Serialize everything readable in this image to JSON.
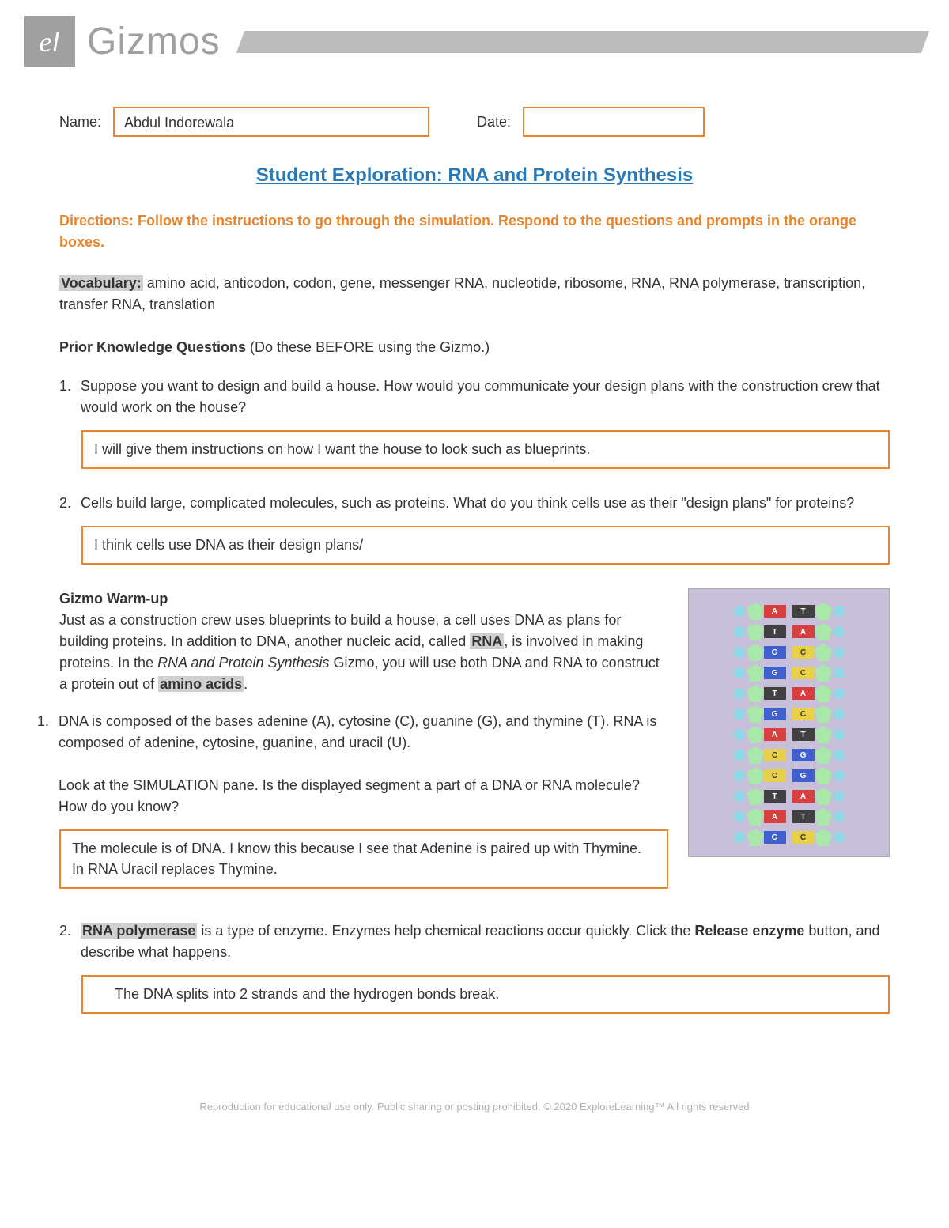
{
  "header": {
    "logo_text": "el",
    "brand": "Gizmos"
  },
  "fields": {
    "name_label": "Name:",
    "name_value": "Abdul Indorewala",
    "date_label": "Date:",
    "date_value": ""
  },
  "title": "Student Exploration: RNA and Protein Synthesis",
  "directions": "Directions: Follow the instructions to go through the simulation. Respond to the questions and prompts in the orange boxes.",
  "vocab": {
    "label": "Vocabulary:",
    "text": " amino acid, anticodon, codon, gene, messenger RNA, nucleotide, ribosome, RNA, RNA polymerase, transcription, transfer RNA, translation"
  },
  "prior": {
    "label": "Prior Knowledge Questions",
    "note": " (Do these BEFORE using the Gizmo.)"
  },
  "q1": {
    "num": "1.",
    "text": "Suppose you want to design and build a house. How would you communicate your design plans with the construction crew that would work on the house?",
    "answer": "I will give them instructions on how I want the house to look such as blueprints."
  },
  "q2": {
    "num": "2.",
    "text": "Cells build large, complicated molecules, such as proteins. What do you think cells use as their \"design plans\" for proteins?",
    "answer": "I think cells use DNA as their design plans/"
  },
  "warmup": {
    "heading": "Gizmo Warm-up",
    "intro_1": "Just as a construction crew uses blueprints to build a house, a cell uses DNA as plans for building proteins. In addition to DNA, another nucleic acid, called ",
    "rna": "RNA",
    "intro_2": ", is involved in making proteins. In the ",
    "italic": "RNA and Protein Synthesis",
    "intro_3": " Gizmo, you will use both DNA and RNA to construct a protein out of ",
    "amino": "amino acids",
    "intro_4": "."
  },
  "wq1": {
    "num": "1.",
    "text_a": "DNA is composed of the bases adenine (A), cytosine (C), guanine (G), and thymine (T). RNA is composed of adenine, cytosine, guanine, and uracil (U).",
    "text_b": "Look at the SIMULATION pane. Is the displayed segment a part of a DNA or RNA molecule? How do you know?",
    "answer": "The molecule is of DNA. I know this because I see that Adenine is paired up with Thymine. In RNA Uracil replaces Thymine."
  },
  "wq2": {
    "num": "2.",
    "rna_poly": "RNA polymerase",
    "text_a": " is a type of enzyme. Enzymes help chemical reactions occur quickly. Click the ",
    "release": "Release enzyme",
    "text_b": " button, and describe what happens.",
    "answer": "The DNA splits into 2 strands and the hydrogen bonds break."
  },
  "dna_pairs": [
    [
      "A",
      "T"
    ],
    [
      "T",
      "A"
    ],
    [
      "G",
      "C"
    ],
    [
      "G",
      "C"
    ],
    [
      "T",
      "A"
    ],
    [
      "G",
      "C"
    ],
    [
      "A",
      "T"
    ],
    [
      "C",
      "G"
    ],
    [
      "C",
      "G"
    ],
    [
      "T",
      "A"
    ],
    [
      "A",
      "T"
    ],
    [
      "G",
      "C"
    ]
  ],
  "footer": "Reproduction for educational use only. Public sharing or posting prohibited. © 2020 ExploreLearning™ All rights reserved",
  "colors": {
    "orange": "#e8852c",
    "title_blue": "#2a7ab8",
    "gray": "#a0a0a0"
  }
}
